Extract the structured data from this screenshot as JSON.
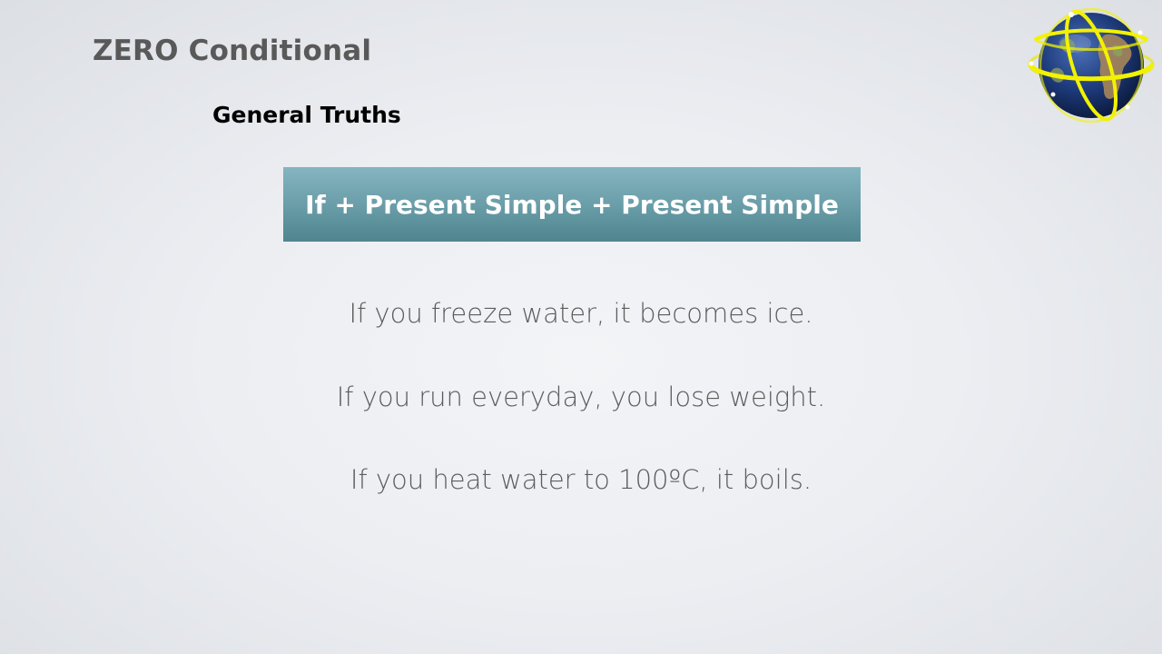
{
  "slide": {
    "title": "ZERO Conditional",
    "subtitle": "General Truths",
    "formula": "If + Present Simple + Present Simple",
    "examples": [
      "If you freeze water, it becomes ice.",
      "If you run everyday, you lose weight.",
      "If you heat water to 100ºC, it boils."
    ],
    "logo_icon": "globe-icon"
  },
  "colors": {
    "title": "#595959",
    "subtitle": "#000000",
    "formula_box": "#6a9ea9",
    "example_text": "#5c5c5c",
    "globe_ring": "#f2f200"
  }
}
